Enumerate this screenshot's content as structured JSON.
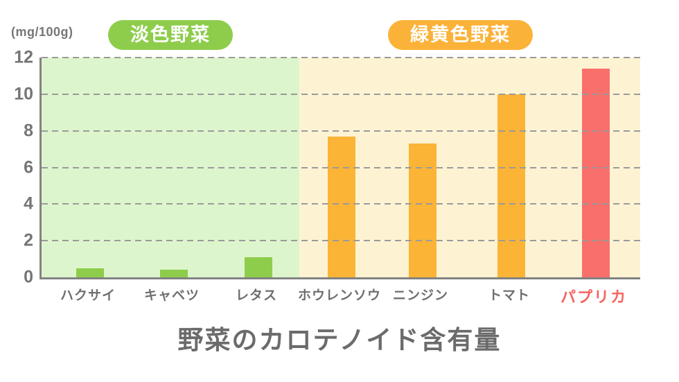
{
  "header": {
    "unit_label": "(mg/100g)",
    "badges": [
      {
        "label": "淡色野菜",
        "color": "#8ecd4c"
      },
      {
        "label": "緑黄色野菜",
        "color": "#fbb239"
      }
    ]
  },
  "chart_data": {
    "type": "bar",
    "title": "野菜のカロテノイド含有量",
    "ylabel": "(mg/100g)",
    "ylim": [
      0,
      12
    ],
    "yticks": [
      0,
      2,
      4,
      6,
      8,
      10,
      12
    ],
    "ytick_labels_top_to_bottom": [
      "12",
      "10",
      "8",
      "6",
      "4",
      "2",
      "0"
    ],
    "grid": "horizontal-dashed",
    "legend": "none",
    "groups": [
      {
        "label": "淡色野菜",
        "background_color": "#ddf5cc",
        "bar_color": "#8ecd4c",
        "categories": [
          "ハクサイ",
          "キャベツ",
          "レタス"
        ],
        "values": [
          0.5,
          0.4,
          1.1
        ]
      },
      {
        "label": "緑黄色野菜",
        "background_color": "#fdf3d3",
        "bar_color": "#fbb436",
        "categories": [
          "ホウレンソウ",
          "ニンジン",
          "トマト",
          "パプリカ"
        ],
        "values": [
          7.7,
          7.3,
          10.0,
          11.4
        ]
      }
    ],
    "bars": [
      {
        "label": "ハクサイ",
        "value": 0.5,
        "group": "淡色野菜",
        "color": "#8ecd4c",
        "label_color": "#6e6e6e"
      },
      {
        "label": "キャベツ",
        "value": 0.4,
        "group": "淡色野菜",
        "color": "#8ecd4c",
        "label_color": "#6e6e6e"
      },
      {
        "label": "レタス",
        "value": 1.1,
        "group": "淡色野菜",
        "color": "#8ecd4c",
        "label_color": "#6e6e6e"
      },
      {
        "label": "ホウレンソウ",
        "value": 7.7,
        "group": "緑黄色野菜",
        "color": "#fbb436",
        "label_color": "#6e6e6e"
      },
      {
        "label": "ニンジン",
        "value": 7.3,
        "group": "緑黄色野菜",
        "color": "#fbb436",
        "label_color": "#6e6e6e"
      },
      {
        "label": "トマト",
        "value": 10.0,
        "group": "緑黄色野菜",
        "color": "#fbb436",
        "label_color": "#6e6e6e"
      },
      {
        "label": "パプリカ",
        "value": 11.4,
        "group": "緑黄色野菜",
        "color": "#f96f6b",
        "label_color": "#f4645f",
        "highlight": true
      }
    ],
    "colors": {
      "axis": "#828282",
      "gridline": "#9a9a9a",
      "ytick_text": "#757575",
      "title_text": "#6b6b6b"
    }
  }
}
